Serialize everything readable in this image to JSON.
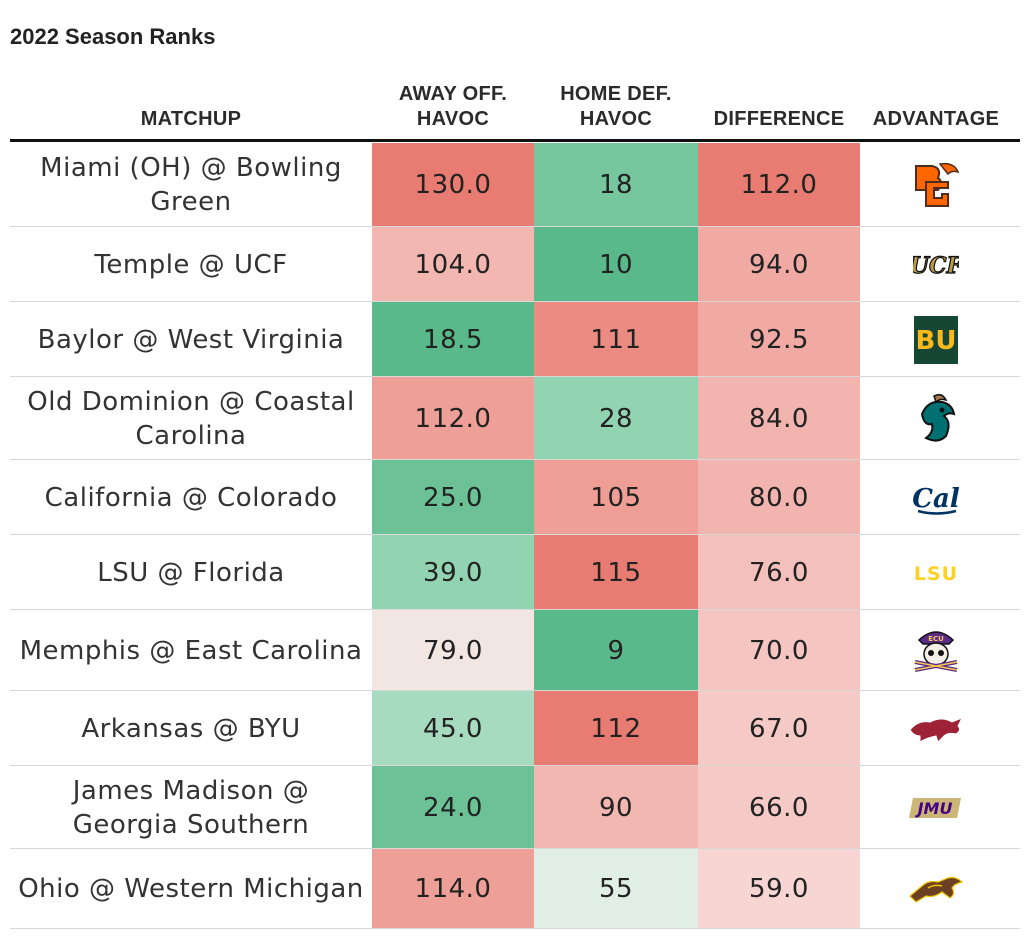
{
  "title": "2022 Season Ranks",
  "chart_data": {
    "type": "table",
    "columns": [
      "MATCHUP",
      "AWAY OFF.\nHAVOC",
      "HOME DEF.\nHAVOC",
      "DIFFERENCE",
      "ADVANTAGE"
    ],
    "rows": [
      {
        "matchup": "Miami (OH) @ Bowling Green",
        "away_off": "130.0",
        "home_def": "18",
        "difference": "112.0",
        "advantage_icon": "bowling-green-logo-icon",
        "advantage_text": "BG"
      },
      {
        "matchup": "Temple @ UCF",
        "away_off": "104.0",
        "home_def": "10",
        "difference": "94.0",
        "advantage_icon": "ucf-logo-icon",
        "advantage_text": "UCF"
      },
      {
        "matchup": "Baylor @ West Virginia",
        "away_off": "18.5",
        "home_def": "111",
        "difference": "92.5",
        "advantage_icon": "baylor-logo-icon",
        "advantage_text": "BU"
      },
      {
        "matchup": "Old Dominion @ Coastal Carolina",
        "away_off": "112.0",
        "home_def": "28",
        "difference": "84.0",
        "advantage_icon": "coastal-carolina-logo-icon",
        "advantage_text": ""
      },
      {
        "matchup": "California @ Colorado",
        "away_off": "25.0",
        "home_def": "105",
        "difference": "80.0",
        "advantage_icon": "cal-logo-icon",
        "advantage_text": "Cal"
      },
      {
        "matchup": "LSU @ Florida",
        "away_off": "39.0",
        "home_def": "115",
        "difference": "76.0",
        "advantage_icon": "lsu-logo-icon",
        "advantage_text": "LSU"
      },
      {
        "matchup": "Memphis @ East Carolina",
        "away_off": "79.0",
        "home_def": "9",
        "difference": "70.0",
        "advantage_icon": "east-carolina-logo-icon",
        "advantage_text": "ECU"
      },
      {
        "matchup": "Arkansas @ BYU",
        "away_off": "45.0",
        "home_def": "112",
        "difference": "67.0",
        "advantage_icon": "arkansas-logo-icon",
        "advantage_text": ""
      },
      {
        "matchup": "James Madison @ Georgia Southern",
        "away_off": "24.0",
        "home_def": "90",
        "difference": "66.0",
        "advantage_icon": "jmu-logo-icon",
        "advantage_text": "JMU"
      },
      {
        "matchup": "Ohio @ Western Michigan",
        "away_off": "114.0",
        "home_def": "55",
        "difference": "59.0",
        "advantage_icon": "western-michigan-logo-icon",
        "advantage_text": ""
      }
    ],
    "cell_colors": {
      "away_off": [
        "#e87b72",
        "#f2b7b1",
        "#5ab98a",
        "#ee9f97",
        "#6cc197",
        "#92d3b1",
        "#f2e6e3",
        "#a6dbbf",
        "#6cc197",
        "#ee9f97"
      ],
      "home_def": [
        "#76c79e",
        "#5ab98a",
        "#ec8b82",
        "#92d3b1",
        "#ef9e96",
        "#e87b72",
        "#5ab98a",
        "#e87b72",
        "#f2b7b1",
        "#e0eee6"
      ],
      "difference": [
        "#e87b72",
        "#f0aaa3",
        "#f0aaa3",
        "#f1b4ae",
        "#f1b4ae",
        "#f4c0bb",
        "#f4c5c1",
        "#f5cac6",
        "#f5cac6",
        "#f7d5d2"
      ]
    },
    "logo_colors": {
      "bowling_green": "#ff6600",
      "bowling_green_dark": "#4f2c1d",
      "ucf": "#b89a47",
      "baylor_green": "#154734",
      "baylor_gold": "#ffb81c",
      "coastal": "#006f71",
      "cal": "#003262",
      "lsu": "#fdd023",
      "ecu": "#592a8a",
      "arkansas": "#9d2235",
      "jmu": "#450084",
      "wmu": "#6c4023"
    }
  }
}
